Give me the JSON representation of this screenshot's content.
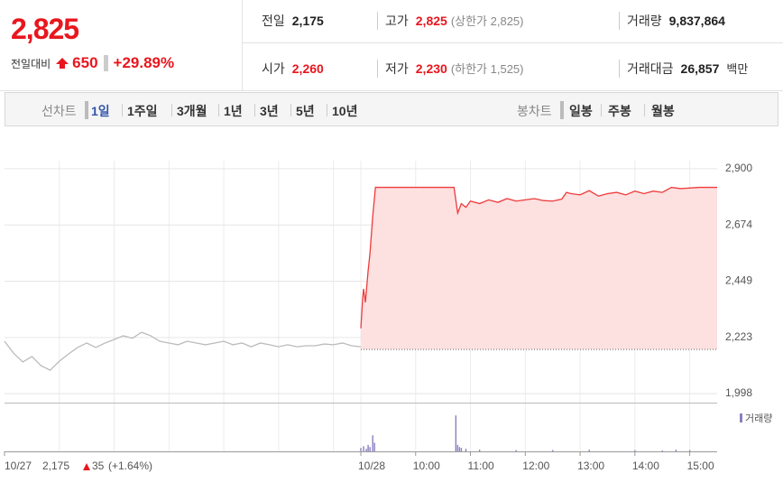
{
  "quote": {
    "price": "2,825",
    "change_label": "전일대비",
    "change": "650",
    "change_rate": "+29.89%"
  },
  "summary": {
    "rows": [
      [
        {
          "label": "전일",
          "value": "2,175"
        },
        {
          "label": "고가",
          "value": "2,825",
          "note": "(상한가 2,825)"
        },
        {
          "label": "거래량",
          "value": "9,837,864"
        }
      ],
      [
        {
          "label": "시가",
          "value": "2,260"
        },
        {
          "label": "저가",
          "value": "2,230",
          "note": "(하한가 1,525)"
        },
        {
          "label": "거래대금",
          "value": "26,857",
          "note": "백만"
        }
      ]
    ]
  },
  "tabs": {
    "line_label": "선차트",
    "line": [
      "1일",
      "1주일",
      "3개월",
      "1년",
      "3년",
      "5년",
      "10년"
    ],
    "candle_label": "봉차트",
    "candle": [
      "일봉",
      "주봉",
      "월봉"
    ]
  },
  "chart_data": {
    "type": "line",
    "series": [
      {
        "color": "#bbbbbb",
        "x": [
          0,
          10,
          20,
          30,
          40,
          50,
          60,
          70,
          80,
          90,
          100,
          110,
          120,
          130,
          140,
          150,
          160,
          170,
          180,
          190,
          200,
          210,
          220,
          230,
          240,
          250,
          260,
          270,
          280,
          290,
          300,
          310,
          320,
          330,
          340,
          350,
          360,
          370,
          380,
          390
        ],
        "values": [
          2208,
          2160,
          2125,
          2147,
          2110,
          2092,
          2128,
          2157,
          2183,
          2201,
          2183,
          2201,
          2215,
          2230,
          2220,
          2244,
          2230,
          2208,
          2201,
          2194,
          2208,
          2201,
          2194,
          2201,
          2208,
          2194,
          2201,
          2186,
          2201,
          2194,
          2186,
          2194,
          2186,
          2190,
          2190,
          2197,
          2194,
          2201,
          2190,
          2186
        ]
      },
      {
        "color": "#ee3b3b",
        "fill": "#fde0e0",
        "x": [
          390,
          392,
          393,
          395,
          398,
          400,
          403,
          406,
          430,
          460,
          492,
          496,
          500,
          505,
          510,
          520,
          530,
          540,
          550,
          560,
          570,
          580,
          590,
          600,
          610,
          615,
          620,
          630,
          640,
          650,
          660,
          670,
          680,
          690,
          700,
          710,
          720,
          730,
          740,
          760,
          780
        ],
        "values": [
          2260,
          2380,
          2418,
          2364,
          2491,
          2560,
          2708,
          2825,
          2825,
          2825,
          2825,
          2722,
          2760,
          2745,
          2770,
          2760,
          2775,
          2765,
          2780,
          2770,
          2775,
          2780,
          2772,
          2770,
          2778,
          2805,
          2800,
          2795,
          2812,
          2790,
          2800,
          2805,
          2795,
          2810,
          2800,
          2810,
          2805,
          2825,
          2820,
          2825,
          2825
        ]
      }
    ],
    "prev_close": 2175,
    "xlim": [
      0,
      780
    ],
    "ylim": [
      1962,
      2932
    ],
    "yticks": [
      {
        "value": 1998,
        "label": "1,998"
      },
      {
        "value": 2223,
        "label": "2,223"
      },
      {
        "value": 2449,
        "label": "2,449"
      },
      {
        "value": 2674,
        "label": "2,674"
      },
      {
        "value": 2900,
        "label": "2,900"
      }
    ],
    "xticks": [
      {
        "value": 0,
        "label": "10/27"
      },
      {
        "value": 390,
        "label": "10/28"
      },
      {
        "value": 450,
        "label": "10:00"
      },
      {
        "value": 510,
        "label": "11:00"
      },
      {
        "value": 570,
        "label": "12:00"
      },
      {
        "value": 630,
        "label": "13:00"
      },
      {
        "value": 690,
        "label": "14:00"
      },
      {
        "value": 750,
        "label": "15:00"
      }
    ],
    "xgrid": [
      60,
      120,
      180,
      240,
      300,
      360,
      390,
      450,
      510,
      570,
      630,
      690,
      750
    ],
    "grid": true,
    "prev_day": {
      "close": "2,175",
      "change": "35",
      "rate": "(+1.64%)"
    },
    "volume": {
      "name": "거래량",
      "color": "#8a7fc0",
      "ylim": [
        0,
        100
      ],
      "x": [
        390,
        393,
        396,
        398,
        400,
        403,
        405,
        494,
        496,
        498,
        500,
        505,
        520,
        560,
        600,
        640,
        690,
        720,
        735,
        750
      ],
      "values": [
        8,
        12,
        6,
        15,
        10,
        37,
        20,
        83,
        15,
        10,
        8,
        6,
        4,
        3,
        3,
        4,
        3,
        2,
        4,
        3
      ]
    }
  }
}
